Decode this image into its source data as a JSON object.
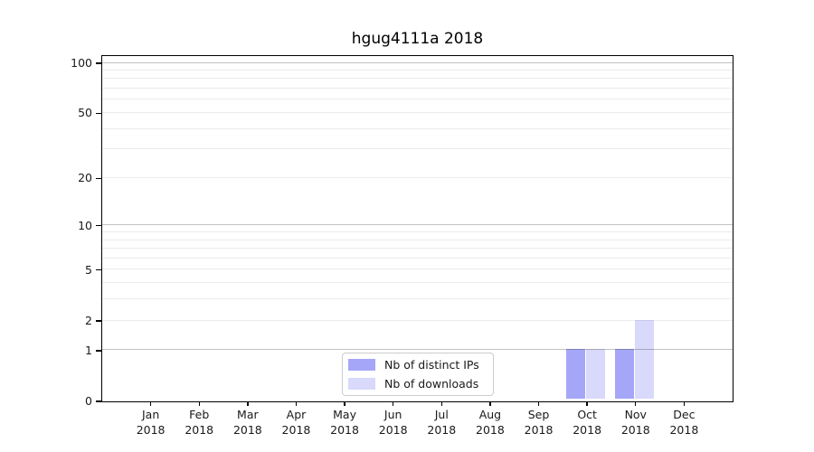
{
  "chart_data": {
    "type": "bar",
    "title": "hgug4111a 2018",
    "categories": [
      {
        "month": "Jan",
        "year": "2018"
      },
      {
        "month": "Feb",
        "year": "2018"
      },
      {
        "month": "Mar",
        "year": "2018"
      },
      {
        "month": "Apr",
        "year": "2018"
      },
      {
        "month": "May",
        "year": "2018"
      },
      {
        "month": "Jun",
        "year": "2018"
      },
      {
        "month": "Jul",
        "year": "2018"
      },
      {
        "month": "Aug",
        "year": "2018"
      },
      {
        "month": "Sep",
        "year": "2018"
      },
      {
        "month": "Oct",
        "year": "2018"
      },
      {
        "month": "Nov",
        "year": "2018"
      },
      {
        "month": "Dec",
        "year": "2018"
      }
    ],
    "series": [
      {
        "name": "Nb of distinct IPs",
        "color": "#a6a6f8",
        "values": [
          0,
          0,
          0,
          0,
          0,
          0,
          0,
          0,
          0,
          1,
          1,
          0
        ]
      },
      {
        "name": "Nb of downloads",
        "color": "#d9d9fb",
        "values": [
          0,
          0,
          0,
          0,
          0,
          0,
          0,
          0,
          0,
          1,
          2,
          0
        ]
      }
    ],
    "yscale": "log1p",
    "ylim": [
      0,
      109
    ],
    "ytick_labels": [
      "0",
      "1",
      "2",
      "5",
      "10",
      "20",
      "50",
      "100"
    ],
    "ytick_values": [
      0,
      1,
      2,
      5,
      10,
      20,
      50,
      100
    ],
    "major_grid_values": [
      1,
      10,
      100
    ],
    "minor_grid_values": [
      2,
      3,
      4,
      5,
      6,
      7,
      8,
      9,
      20,
      30,
      40,
      50,
      60,
      70,
      80,
      90
    ],
    "grid": "horizontal",
    "legend_position": "lower center",
    "colors": {
      "major_grid": "rgba(0,0,0,0.24)",
      "minor_grid": "rgba(0,0,0,0.08)",
      "spine": "#000000",
      "text": "#1a1a1a"
    }
  }
}
